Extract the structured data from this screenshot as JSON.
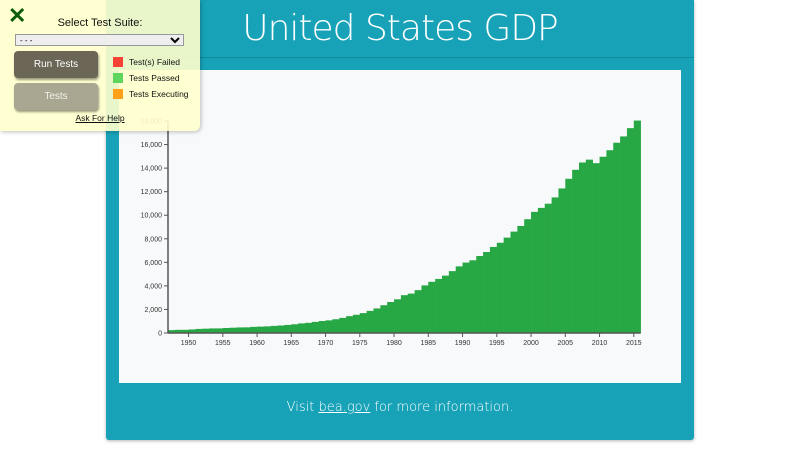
{
  "page": {
    "title": "United States GDP",
    "footer_prefix": "Visit ",
    "footer_link": "bea.gov",
    "footer_suffix": " for more information."
  },
  "test_panel": {
    "close_icon": "close-x-icon",
    "select_label": "Select Test Suite:",
    "select_value": "- - -",
    "run_button": "Run Tests",
    "tests_button": "Tests",
    "legend": [
      {
        "label": "Test(s) Failed",
        "color": "#f44336"
      },
      {
        "label": "Tests Passed",
        "color": "#5cd65c"
      },
      {
        "label": "Tests Executing",
        "color": "#ff9f1a"
      }
    ],
    "help_link": "Ask For Help"
  },
  "colors": {
    "background": "#17a2b8",
    "bar": "#28a745",
    "chart_bg": "#f8f9fa"
  },
  "chart_data": {
    "type": "bar",
    "title": "",
    "xlabel": "",
    "ylabel": "",
    "ylim": [
      0,
      18000
    ],
    "y_ticks": [
      "0",
      "2,000",
      "4,000",
      "6,000",
      "8,000",
      "10,000",
      "12,000",
      "14,000",
      "16,000",
      "18,000"
    ],
    "x_ticks": [
      "1950",
      "1955",
      "1960",
      "1965",
      "1970",
      "1975",
      "1980",
      "1985",
      "1990",
      "1995",
      "2000",
      "2005",
      "2010",
      "2015"
    ],
    "x": [
      1947,
      1948,
      1949,
      1950,
      1951,
      1952,
      1953,
      1954,
      1955,
      1956,
      1957,
      1958,
      1959,
      1960,
      1961,
      1962,
      1963,
      1964,
      1965,
      1966,
      1967,
      1968,
      1969,
      1970,
      1971,
      1972,
      1973,
      1974,
      1975,
      1976,
      1977,
      1978,
      1979,
      1980,
      1981,
      1982,
      1983,
      1984,
      1985,
      1986,
      1987,
      1988,
      1989,
      1990,
      1991,
      1992,
      1993,
      1994,
      1995,
      1996,
      1997,
      1998,
      1999,
      2000,
      2001,
      2002,
      2003,
      2004,
      2005,
      2006,
      2007,
      2008,
      2009,
      2010,
      2011,
      2012,
      2013,
      2014,
      2015
    ],
    "values": [
      244,
      270,
      272,
      300,
      347,
      367,
      389,
      391,
      425,
      449,
      474,
      481,
      522,
      543,
      563,
      605,
      638,
      686,
      744,
      815,
      862,
      943,
      1019,
      1075,
      1168,
      1282,
      1429,
      1548,
      1689,
      1878,
      2086,
      2357,
      2632,
      2862,
      3211,
      3345,
      3638,
      4041,
      4347,
      4590,
      4870,
      5253,
      5658,
      5980,
      6174,
      6539,
      6879,
      7309,
      7664,
      8100,
      8609,
      9089,
      9661,
      10285,
      10622,
      10978,
      11511,
      12275,
      13094,
      13856,
      14478,
      14719,
      14419,
      14964,
      15518,
      16155,
      16692,
      17393,
      18037
    ]
  }
}
